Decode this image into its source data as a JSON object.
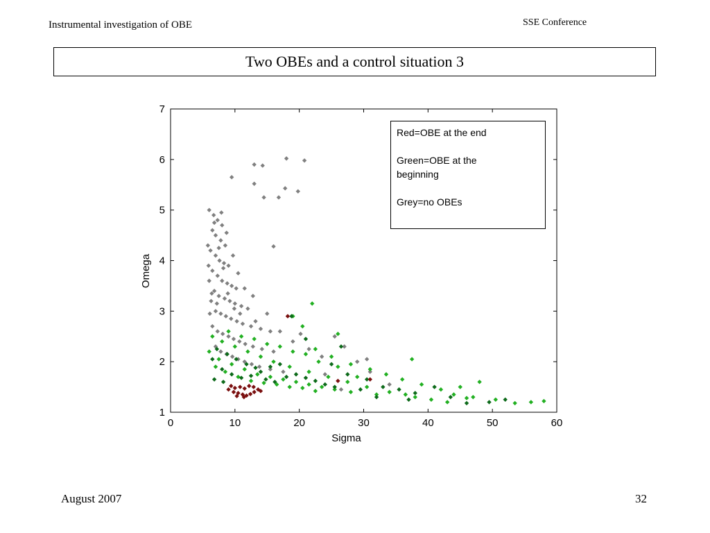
{
  "header": {
    "left": "Instrumental investigation of OBE",
    "right": "SSE Conference"
  },
  "slide_title": "Two OBEs and a control situation 3",
  "footer": {
    "date": "August 2007",
    "page": "32"
  },
  "legend": {
    "entries": [
      "Red=OBE at the end",
      "Green=OBE at the beginning",
      "Grey=no OBEs"
    ]
  },
  "colors": {
    "grey": "#808080",
    "green": "#22b022",
    "dark_green": "#0d6a1a",
    "dark_red": "#7a0f0f"
  },
  "chart_data": {
    "type": "scatter",
    "xlabel": "Sigma",
    "ylabel": "Omega",
    "xlim": [
      0,
      60
    ],
    "ylim": [
      1,
      7
    ],
    "xticks": [
      0,
      10,
      20,
      30,
      40,
      50,
      60
    ],
    "yticks": [
      1,
      2,
      3,
      4,
      5,
      6,
      7
    ],
    "series": [
      {
        "color": "#808080",
        "points": [
          [
            13,
            5.9
          ],
          [
            14.3,
            5.88
          ],
          [
            18,
            6.02
          ],
          [
            20.8,
            5.98
          ],
          [
            9.5,
            5.65
          ],
          [
            13,
            5.52
          ],
          [
            17.8,
            5.43
          ],
          [
            19.8,
            5.37
          ],
          [
            14.5,
            5.25
          ],
          [
            16.8,
            5.25
          ],
          [
            6,
            5
          ],
          [
            6.7,
            4.9
          ],
          [
            7.3,
            4.8
          ],
          [
            8,
            4.7
          ],
          [
            6.5,
            4.6
          ],
          [
            7,
            4.5
          ],
          [
            7.8,
            4.4
          ],
          [
            8.5,
            4.3
          ],
          [
            5.8,
            4.3
          ],
          [
            16,
            4.28
          ],
          [
            6.2,
            4.2
          ],
          [
            7,
            4.1
          ],
          [
            7.6,
            4
          ],
          [
            8.3,
            3.95
          ],
          [
            9,
            3.9
          ],
          [
            5.9,
            3.9
          ],
          [
            6.5,
            3.8
          ],
          [
            7.3,
            3.7
          ],
          [
            8,
            3.6
          ],
          [
            8.8,
            3.55
          ],
          [
            9.5,
            3.5
          ],
          [
            10.2,
            3.45
          ],
          [
            6,
            3.6
          ],
          [
            6.8,
            3.4
          ],
          [
            7.5,
            3.3
          ],
          [
            8.4,
            3.25
          ],
          [
            9.2,
            3.2
          ],
          [
            10,
            3.15
          ],
          [
            11,
            3.1
          ],
          [
            12,
            3.05
          ],
          [
            6.3,
            3.2
          ],
          [
            7,
            3
          ],
          [
            7.8,
            2.95
          ],
          [
            8.6,
            2.9
          ],
          [
            9.4,
            2.85
          ],
          [
            10.3,
            2.8
          ],
          [
            11.2,
            2.75
          ],
          [
            12.5,
            2.7
          ],
          [
            14,
            2.65
          ],
          [
            15.5,
            2.6
          ],
          [
            6.5,
            2.7
          ],
          [
            7.3,
            2.6
          ],
          [
            8.1,
            2.55
          ],
          [
            9,
            2.5
          ],
          [
            9.8,
            2.45
          ],
          [
            10.7,
            2.4
          ],
          [
            11.6,
            2.35
          ],
          [
            12.8,
            2.3
          ],
          [
            14.2,
            2.25
          ],
          [
            16,
            2.2
          ],
          [
            7,
            2.3
          ],
          [
            7.8,
            2.2
          ],
          [
            8.7,
            2.15
          ],
          [
            9.6,
            2.1
          ],
          [
            10.5,
            2.05
          ],
          [
            11.5,
            2
          ],
          [
            12.6,
            1.95
          ],
          [
            13.8,
            1.9
          ],
          [
            15.5,
            1.85
          ],
          [
            17.5,
            1.8
          ],
          [
            6.8,
            4.75
          ],
          [
            7.5,
            4.25
          ],
          [
            8.2,
            3.85
          ],
          [
            6.4,
            3.35
          ],
          [
            7.2,
            3.15
          ],
          [
            8.9,
            3.35
          ],
          [
            9.9,
            3.05
          ],
          [
            10.8,
            2.95
          ],
          [
            6.1,
            2.95
          ],
          [
            13.2,
            2.8
          ],
          [
            20.2,
            2.55
          ],
          [
            25.5,
            2.5
          ],
          [
            27,
            2.3
          ],
          [
            23.5,
            2.1
          ],
          [
            29,
            2
          ],
          [
            30.5,
            2.05
          ],
          [
            24,
            1.75
          ],
          [
            34,
            1.55
          ],
          [
            26.5,
            1.45
          ],
          [
            31,
            1.8
          ],
          [
            19,
            2.4
          ],
          [
            21.5,
            2.25
          ],
          [
            17,
            2.6
          ],
          [
            15,
            2.95
          ],
          [
            12.8,
            3.3
          ],
          [
            11.5,
            3.45
          ],
          [
            10.5,
            3.75
          ],
          [
            9.7,
            4.1
          ],
          [
            8.7,
            4.55
          ],
          [
            7.9,
            4.95
          ]
        ]
      },
      {
        "color": "#22b022",
        "points": [
          [
            22,
            3.15
          ],
          [
            19,
            2.9
          ],
          [
            20.5,
            2.7
          ],
          [
            26,
            2.55
          ],
          [
            37.5,
            2.05
          ],
          [
            22.5,
            2.25
          ],
          [
            25,
            2.1
          ],
          [
            28,
            1.95
          ],
          [
            31,
            1.85
          ],
          [
            33.5,
            1.75
          ],
          [
            36,
            1.65
          ],
          [
            39,
            1.55
          ],
          [
            42,
            1.45
          ],
          [
            45,
            1.5
          ],
          [
            48,
            1.6
          ],
          [
            44,
            1.35
          ],
          [
            47,
            1.3
          ],
          [
            50.5,
            1.25
          ],
          [
            53.5,
            1.18
          ],
          [
            56,
            1.2
          ],
          [
            58,
            1.22
          ],
          [
            40.5,
            1.25
          ],
          [
            43,
            1.2
          ],
          [
            36.5,
            1.35
          ],
          [
            34,
            1.4
          ],
          [
            30.5,
            1.5
          ],
          [
            27.5,
            1.6
          ],
          [
            24.5,
            1.7
          ],
          [
            21.5,
            1.8
          ],
          [
            18.5,
            1.9
          ],
          [
            16,
            2
          ],
          [
            14,
            2.1
          ],
          [
            12,
            2.2
          ],
          [
            10,
            2.3
          ],
          [
            8,
            2.4
          ],
          [
            6.5,
            2.5
          ],
          [
            7.5,
            2.05
          ],
          [
            9.5,
            1.95
          ],
          [
            11.5,
            1.85
          ],
          [
            13.5,
            1.75
          ],
          [
            15.5,
            1.7
          ],
          [
            17.5,
            1.65
          ],
          [
            19.5,
            1.6
          ],
          [
            21.5,
            1.55
          ],
          [
            23.5,
            1.5
          ],
          [
            25.5,
            1.45
          ],
          [
            28,
            1.4
          ],
          [
            32,
            1.35
          ],
          [
            38,
            1.3
          ],
          [
            46,
            1.28
          ],
          [
            6,
            2.2
          ],
          [
            7,
            1.9
          ],
          [
            8.5,
            1.8
          ],
          [
            10.5,
            1.7
          ],
          [
            12.5,
            1.62
          ],
          [
            14.5,
            1.58
          ],
          [
            16.5,
            1.55
          ],
          [
            18.5,
            1.5
          ],
          [
            20.5,
            1.48
          ],
          [
            22.5,
            1.42
          ],
          [
            9,
            2.6
          ],
          [
            11,
            2.5
          ],
          [
            13,
            2.45
          ],
          [
            15,
            2.35
          ],
          [
            17,
            2.3
          ],
          [
            19,
            2.2
          ],
          [
            21,
            2.15
          ],
          [
            23,
            2
          ],
          [
            26,
            1.9
          ],
          [
            29,
            1.7
          ]
        ]
      },
      {
        "color": "#0d6a1a",
        "points": [
          [
            18.8,
            2.9
          ],
          [
            21,
            2.45
          ],
          [
            26.5,
            2.3
          ],
          [
            25,
            1.95
          ],
          [
            27.5,
            1.75
          ],
          [
            30.5,
            1.65
          ],
          [
            33,
            1.5
          ],
          [
            35.5,
            1.45
          ],
          [
            38,
            1.38
          ],
          [
            41,
            1.5
          ],
          [
            49.5,
            1.2
          ],
          [
            52,
            1.25
          ],
          [
            46,
            1.18
          ],
          [
            43.5,
            1.3
          ],
          [
            37,
            1.25
          ],
          [
            32,
            1.3
          ],
          [
            29.5,
            1.45
          ],
          [
            6.5,
            2.05
          ],
          [
            8,
            1.85
          ],
          [
            9.5,
            1.75
          ],
          [
            11,
            1.68
          ],
          [
            12.5,
            1.72
          ],
          [
            14,
            1.8
          ],
          [
            15.5,
            1.9
          ],
          [
            17,
            1.95
          ],
          [
            7.2,
            2.25
          ],
          [
            8.8,
            2.15
          ],
          [
            10.2,
            2.05
          ],
          [
            11.8,
            1.95
          ],
          [
            13.2,
            1.88
          ],
          [
            14.8,
            1.65
          ],
          [
            16.2,
            1.6
          ],
          [
            18,
            1.7
          ],
          [
            19.5,
            1.75
          ],
          [
            21,
            1.68
          ],
          [
            22.5,
            1.62
          ],
          [
            24,
            1.55
          ],
          [
            25.5,
            1.5
          ],
          [
            6.8,
            1.65
          ],
          [
            8.2,
            1.6
          ]
        ]
      },
      {
        "color": "#7a0f0f",
        "points": [
          [
            18.2,
            2.9
          ],
          [
            31,
            1.65
          ],
          [
            26,
            1.62
          ],
          [
            9,
            1.45
          ],
          [
            9.8,
            1.4
          ],
          [
            10.5,
            1.38
          ],
          [
            11.2,
            1.35
          ],
          [
            11.8,
            1.33
          ],
          [
            12.4,
            1.36
          ],
          [
            13,
            1.4
          ],
          [
            13.6,
            1.45
          ],
          [
            10,
            1.48
          ],
          [
            10.8,
            1.5
          ],
          [
            11.5,
            1.47
          ],
          [
            12.2,
            1.52
          ],
          [
            12.9,
            1.5
          ],
          [
            14,
            1.42
          ],
          [
            9.4,
            1.52
          ],
          [
            10.3,
            1.32
          ],
          [
            11.4,
            1.3
          ]
        ]
      }
    ]
  }
}
